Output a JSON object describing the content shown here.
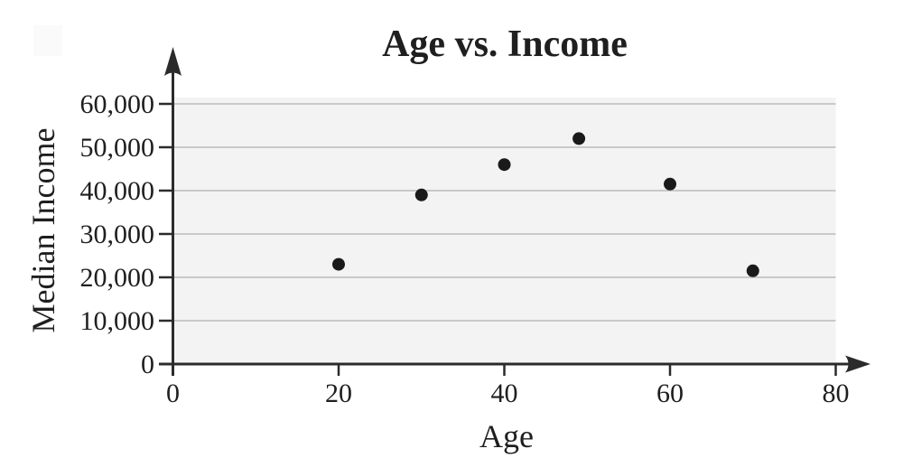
{
  "chart_data": {
    "type": "scatter",
    "title": "Age vs. Income",
    "xlabel": "Age",
    "ylabel": "Median Income",
    "xlim": [
      0,
      80
    ],
    "ylim": [
      0,
      60000
    ],
    "grid": true,
    "legend": "none",
    "x_ticks": [
      0,
      20,
      40,
      60,
      80
    ],
    "x_tick_labels": [
      "0",
      "20",
      "40",
      "60",
      "80"
    ],
    "y_ticks": [
      0,
      10000,
      20000,
      30000,
      40000,
      50000,
      60000
    ],
    "y_tick_labels": [
      "0",
      "10,000",
      "20,000",
      "30,000",
      "40,000",
      "50,000",
      "60,000"
    ],
    "points": [
      {
        "age": 20,
        "income": 23000
      },
      {
        "age": 30,
        "income": 39000
      },
      {
        "age": 40,
        "income": 46000
      },
      {
        "age": 49,
        "income": 52000
      },
      {
        "age": 60,
        "income": 41500
      },
      {
        "age": 70,
        "income": 21500
      }
    ],
    "colors": {
      "point": "#1a1a1a",
      "axis": "#2b2b2b",
      "gridline": "#c9c9c9",
      "plot_background": "#f3f3f3",
      "text": "#1f1f1f",
      "page_background": "#ffffff"
    }
  }
}
